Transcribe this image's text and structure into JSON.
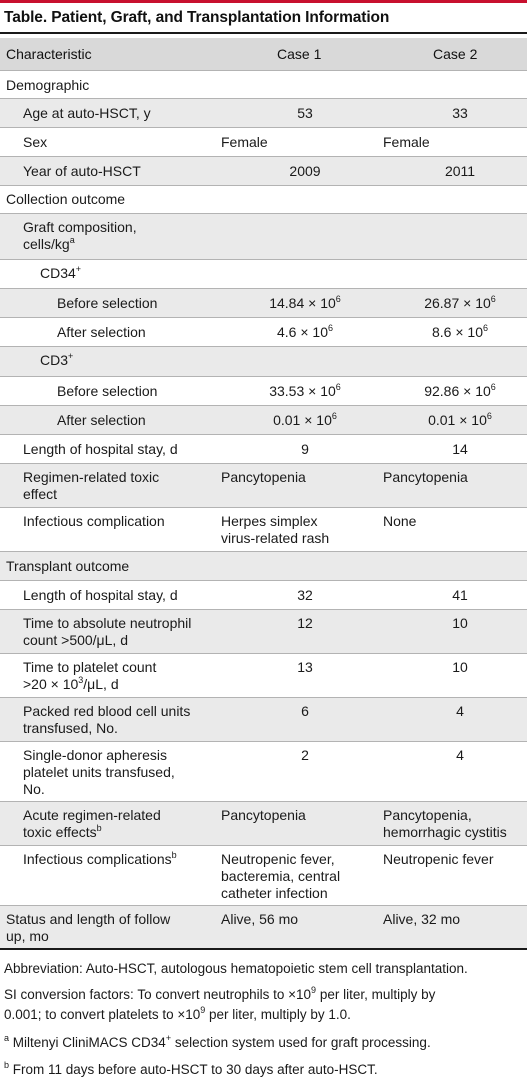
{
  "title": "Table. Patient, Graft, and Transplantation Information",
  "header": {
    "characteristic": "Characteristic",
    "case1": "Case 1",
    "case2": "Case 2"
  },
  "rows": {
    "demographic": "Demographic",
    "age_label": "Age at auto-HSCT, y",
    "age_c1": "53",
    "age_c2": "33",
    "sex_label": "Sex",
    "sex_c1": "Female",
    "sex_c2": "Female",
    "year_label": "Year of auto-HSCT",
    "year_c1": "2009",
    "year_c2": "2011",
    "collection": "Collection outcome",
    "graft_line1": "Graft composition,",
    "graft_line2": "cells/kg",
    "cd34": "CD34",
    "cd34_sup": "+",
    "cd34_before_label": "Before selection",
    "cd34_before_c1": "14.84 × 10",
    "cd34_before_c2": "26.87 × 10",
    "cd34_after_label": "After selection",
    "cd34_after_c1": "4.6 × 10",
    "cd34_after_c2": "8.6 × 10",
    "cd3": "CD3",
    "cd3_sup": "+",
    "cd3_before_label": "Before selection",
    "cd3_before_c1": "33.53 × 10",
    "cd3_before_c2": "92.86 × 10",
    "cd3_after_label": "After selection",
    "cd3_after_c1": "0.01 × 10",
    "cd3_after_c2": "0.01 × 10",
    "exp6": "6",
    "los1_label": "Length of hospital stay, d",
    "los1_c1": "9",
    "los1_c2": "14",
    "tox1_line1": "Regimen-related toxic",
    "tox1_line2": "effect",
    "tox1_c1": "Pancytopenia",
    "tox1_c2": "Pancytopenia",
    "inf1_label": "Infectious complication",
    "inf1_c1_line1": "Herpes simplex",
    "inf1_c1_line2": "virus-related rash",
    "inf1_c2": "None",
    "transplant": "Transplant outcome",
    "los2_label": "Length of hospital stay, d",
    "los2_c1": "32",
    "los2_c2": "41",
    "anc_line1": "Time to absolute neutrophil",
    "anc_line2": "count >500/μL, d",
    "anc_c1": "12",
    "anc_c2": "10",
    "plt_line1": "Time to platelet count",
    "plt_line2a": ">20 × 10",
    "plt_line2_sup": "3",
    "plt_line2b": "/μL, d",
    "plt_c1": "13",
    "plt_c2": "10",
    "rbc_line1": "Packed red blood cell units",
    "rbc_line2": "transfused, No.",
    "rbc_c1": "6",
    "rbc_c2": "4",
    "sdap_line1": "Single-donor apheresis",
    "sdap_line2": "platelet units transfused,",
    "sdap_line3": "No.",
    "sdap_c1": "2",
    "sdap_c2": "4",
    "acute_line1": "Acute regimen-related",
    "acute_line2": "toxic effects",
    "acute_c1": "Pancytopenia",
    "acute_c2_line1": "Pancytopenia,",
    "acute_c2_line2": "hemorrhagic cystitis",
    "inf2_label": "Infectious complications",
    "inf2_c1_line1": "Neutropenic fever,",
    "inf2_c1_line2": "bacteremia, central",
    "inf2_c1_line3": "catheter infection",
    "inf2_c2": "Neutropenic fever",
    "status_line1": "Status and length of follow",
    "status_line2": "up, mo",
    "status_c1": "Alive, 56 mo",
    "status_c2": "Alive, 32 mo",
    "sup_a": "a",
    "sup_b": "b"
  },
  "footnotes": {
    "abbrev": "Abbreviation: Auto-HSCT, autologous hematopoietic stem cell transplantation.",
    "si_part1": "SI conversion factors: To convert neutrophils to ×10",
    "si_sup1": "9",
    "si_part2": " per liter, multiply by",
    "si_part3": "0.001; to convert platelets to ×10",
    "si_sup2": "9",
    "si_part4": " per liter, multiply by 1.0.",
    "a_marker": "a",
    "a_text1": " Miltenyi CliniMACS CD34",
    "a_sup": "+",
    "a_text2": " selection system used for graft processing.",
    "b_marker": "b",
    "b_text": " From 11 days before auto-HSCT to 30 days after auto-HSCT."
  },
  "colors": {
    "accent": "#c8102e",
    "header_bg": "#d9d9d9",
    "band_bg": "#eaeaea"
  }
}
